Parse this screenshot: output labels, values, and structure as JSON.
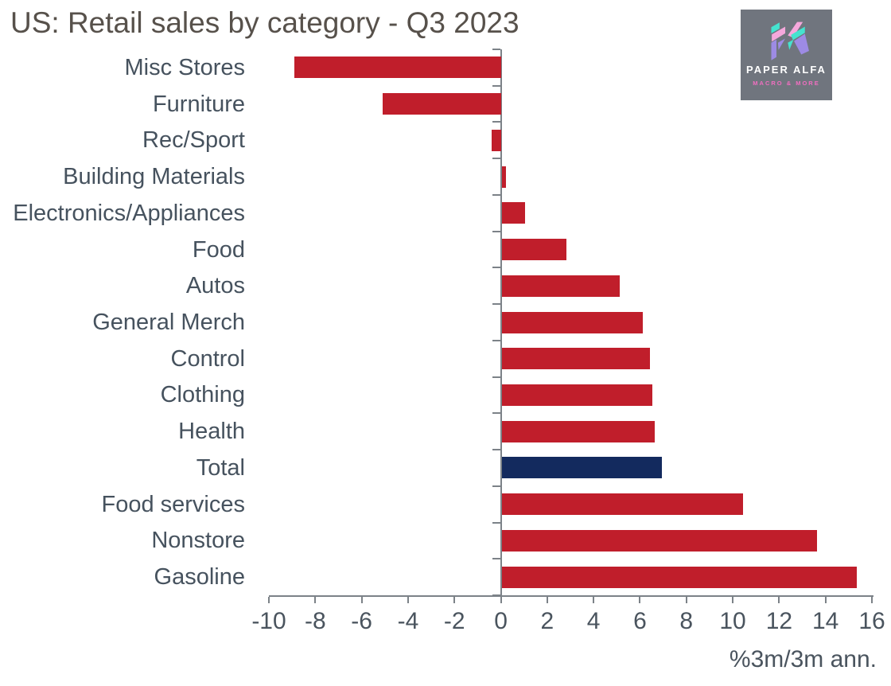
{
  "title": "US: Retail sales by category - Q3 2023",
  "logo": {
    "brand": "PAPER ALFA",
    "tagline": "MACRO & MORE",
    "bg_color": "#70757E",
    "teal": "#45E3CF",
    "pink": "#F6A8DC",
    "purple": "#9D8BE4",
    "tagline_color": "#F06EC0"
  },
  "chart_data": {
    "type": "bar",
    "orientation": "horizontal",
    "title": "US: Retail sales by category - Q3 2023",
    "xlabel": "%3m/3m ann.",
    "xlim": [
      -10,
      16
    ],
    "xticks": [
      -10,
      -8,
      -6,
      -4,
      -2,
      0,
      2,
      4,
      6,
      8,
      10,
      12,
      14,
      16
    ],
    "grid": false,
    "legend": false,
    "categories": [
      "Misc Stores",
      "Furniture",
      "Rec/Sport",
      "Building Materials",
      "Electronics/Appliances",
      "Food",
      "Autos",
      "General Merch",
      "Control",
      "Clothing",
      "Health",
      "Total",
      "Food services",
      "Nonstore",
      "Gasoline"
    ],
    "values": [
      -8.9,
      -5.1,
      -0.4,
      0.2,
      1.0,
      2.8,
      5.1,
      6.1,
      6.4,
      6.5,
      6.6,
      6.9,
      10.4,
      13.6,
      15.3
    ],
    "bar_color": "#C01E2B",
    "highlight_category": "Total",
    "highlight_color": "#132A5E",
    "axis_color": "#7c8288",
    "label_color": "#46525E",
    "title_color": "#57514B"
  }
}
